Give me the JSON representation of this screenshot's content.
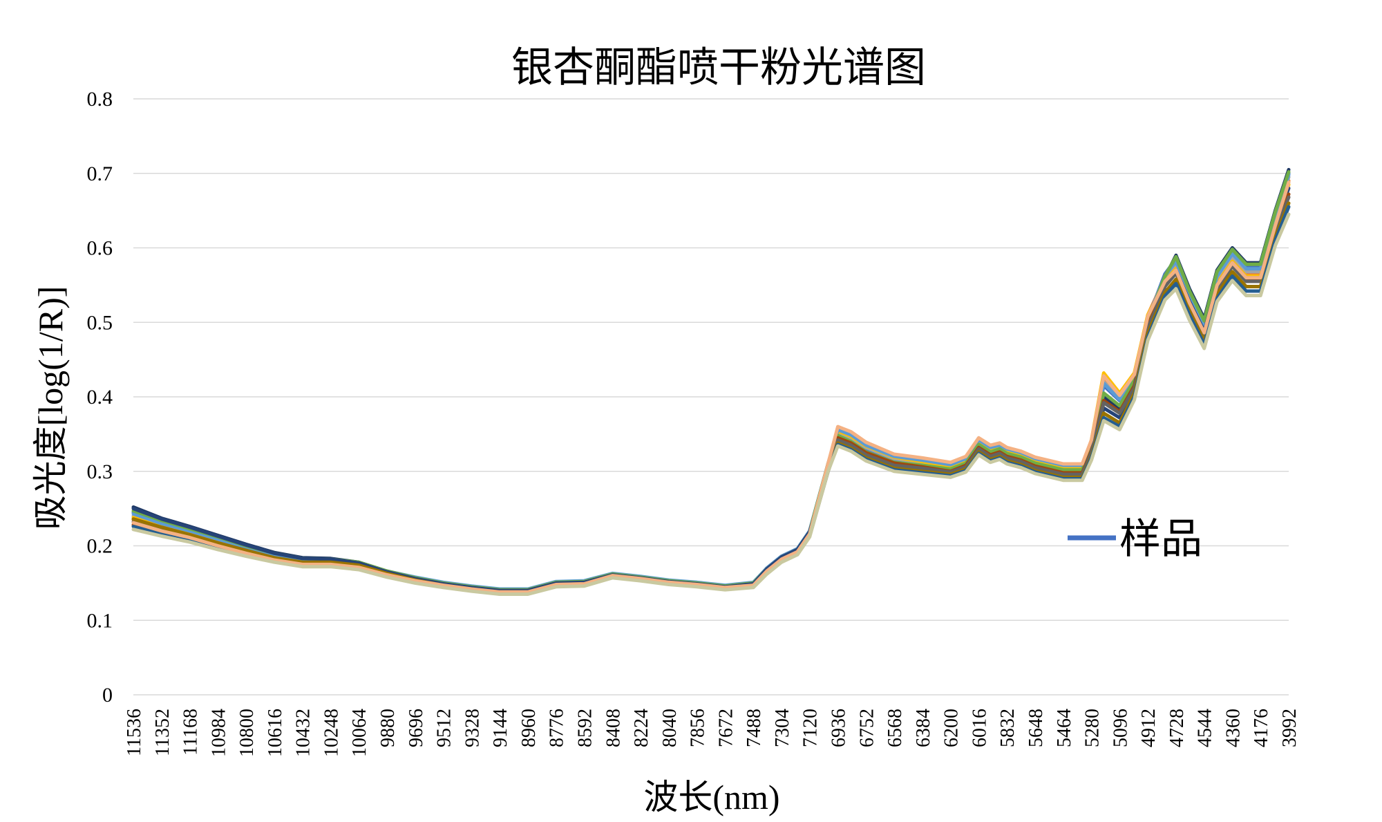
{
  "chart_data": {
    "type": "line",
    "title": "银杏酮酯喷干粉光谱图",
    "xlabel": "波长(nm)",
    "ylabel": "吸光度[log(1/R)]",
    "ylim": [
      0,
      0.8
    ],
    "yticks": [
      "0",
      "0.1",
      "0.2",
      "0.3",
      "0.4",
      "0.5",
      "0.6",
      "0.7",
      "0.8"
    ],
    "xticks": [
      "11536",
      "11352",
      "11168",
      "10984",
      "10800",
      "10616",
      "10432",
      "10248",
      "10064",
      "9880",
      "9696",
      "9512",
      "9328",
      "9144",
      "8960",
      "8776",
      "8592",
      "8408",
      "8224",
      "8040",
      "7856",
      "7672",
      "7488",
      "7304",
      "7120",
      "6936",
      "6752",
      "6568",
      "6384",
      "6200",
      "6016",
      "5832",
      "5648",
      "5464",
      "5280",
      "5096",
      "4912",
      "4728",
      "4544",
      "4360",
      "4176",
      "3992"
    ],
    "grid": true,
    "legend_position": "right",
    "legend_label": "样品",
    "x": [
      11536,
      11352,
      11168,
      10984,
      10800,
      10616,
      10432,
      10248,
      10064,
      9880,
      9696,
      9512,
      9328,
      9144,
      8960,
      8776,
      8592,
      8408,
      8224,
      8040,
      7856,
      7672,
      7488,
      7400,
      7304,
      7200,
      7120,
      7000,
      6936,
      6850,
      6752,
      6568,
      6384,
      6200,
      6100,
      6016,
      5940,
      5880,
      5832,
      5740,
      5648,
      5464,
      5340,
      5280,
      5200,
      5096,
      5000,
      4912,
      4800,
      4728,
      4640,
      4544,
      4460,
      4360,
      4270,
      4176,
      4080,
      3992
    ],
    "series": [
      {
        "color": "#1f3864",
        "values": [
          0.252,
          0.237,
          0.226,
          0.214,
          0.202,
          0.191,
          0.184,
          0.183,
          0.178,
          0.166,
          0.157,
          0.15,
          0.145,
          0.141,
          0.141,
          0.151,
          0.152,
          0.162,
          0.158,
          0.153,
          0.15,
          0.146,
          0.15,
          0.17,
          0.186,
          0.196,
          0.22,
          0.31,
          0.346,
          0.336,
          0.322,
          0.31,
          0.307,
          0.302,
          0.31,
          0.335,
          0.325,
          0.329,
          0.323,
          0.318,
          0.31,
          0.301,
          0.301,
          0.33,
          0.4,
          0.385,
          0.42,
          0.5,
          0.56,
          0.59,
          0.545,
          0.505,
          0.57,
          0.6,
          0.58,
          0.58,
          0.65,
          0.705
        ]
      },
      {
        "color": "#4472c4",
        "values": [
          0.245,
          0.232,
          0.221,
          0.21,
          0.199,
          0.188,
          0.181,
          0.181,
          0.177,
          0.165,
          0.156,
          0.149,
          0.144,
          0.14,
          0.14,
          0.15,
          0.151,
          0.161,
          0.157,
          0.152,
          0.149,
          0.145,
          0.149,
          0.168,
          0.184,
          0.194,
          0.218,
          0.31,
          0.35,
          0.342,
          0.328,
          0.314,
          0.31,
          0.304,
          0.312,
          0.338,
          0.328,
          0.331,
          0.326,
          0.321,
          0.313,
          0.304,
          0.304,
          0.335,
          0.415,
          0.395,
          0.425,
          0.505,
          0.565,
          0.585,
          0.54,
          0.5,
          0.565,
          0.595,
          0.575,
          0.575,
          0.645,
          0.7
        ]
      },
      {
        "color": "#ed7d31",
        "values": [
          0.235,
          0.224,
          0.214,
          0.203,
          0.193,
          0.183,
          0.177,
          0.177,
          0.173,
          0.162,
          0.153,
          0.147,
          0.142,
          0.138,
          0.138,
          0.148,
          0.149,
          0.16,
          0.156,
          0.151,
          0.148,
          0.144,
          0.147,
          0.165,
          0.181,
          0.191,
          0.215,
          0.31,
          0.356,
          0.35,
          0.336,
          0.32,
          0.315,
          0.309,
          0.316,
          0.341,
          0.331,
          0.334,
          0.329,
          0.324,
          0.316,
          0.307,
          0.307,
          0.34,
          0.425,
          0.4,
          0.43,
          0.51,
          0.56,
          0.575,
          0.53,
          0.49,
          0.555,
          0.585,
          0.565,
          0.565,
          0.635,
          0.69
        ]
      },
      {
        "color": "#a5a5a5",
        "values": [
          0.24,
          0.228,
          0.218,
          0.207,
          0.196,
          0.186,
          0.179,
          0.179,
          0.175,
          0.164,
          0.155,
          0.148,
          0.143,
          0.139,
          0.139,
          0.149,
          0.15,
          0.161,
          0.157,
          0.152,
          0.149,
          0.145,
          0.148,
          0.167,
          0.183,
          0.193,
          0.217,
          0.31,
          0.352,
          0.345,
          0.332,
          0.317,
          0.312,
          0.306,
          0.314,
          0.339,
          0.33,
          0.333,
          0.327,
          0.322,
          0.314,
          0.305,
          0.305,
          0.338,
          0.42,
          0.398,
          0.428,
          0.508,
          0.558,
          0.578,
          0.532,
          0.492,
          0.558,
          0.588,
          0.568,
          0.568,
          0.64,
          0.695
        ]
      },
      {
        "color": "#ffc000",
        "values": [
          0.238,
          0.226,
          0.216,
          0.205,
          0.195,
          0.185,
          0.178,
          0.178,
          0.174,
          0.163,
          0.154,
          0.148,
          0.143,
          0.139,
          0.139,
          0.149,
          0.15,
          0.161,
          0.157,
          0.152,
          0.149,
          0.145,
          0.148,
          0.166,
          0.182,
          0.192,
          0.216,
          0.31,
          0.354,
          0.347,
          0.334,
          0.319,
          0.313,
          0.307,
          0.315,
          0.34,
          0.33,
          0.333,
          0.328,
          0.323,
          0.315,
          0.306,
          0.306,
          0.342,
          0.432,
          0.405,
          0.432,
          0.51,
          0.555,
          0.572,
          0.528,
          0.488,
          0.552,
          0.582,
          0.562,
          0.562,
          0.632,
          0.685
        ]
      },
      {
        "color": "#5b9bd5",
        "values": [
          0.243,
          0.23,
          0.22,
          0.209,
          0.198,
          0.188,
          0.181,
          0.18,
          0.176,
          0.166,
          0.158,
          0.151,
          0.146,
          0.142,
          0.142,
          0.152,
          0.153,
          0.163,
          0.159,
          0.154,
          0.151,
          0.147,
          0.151,
          0.17,
          0.186,
          0.196,
          0.22,
          0.31,
          0.356,
          0.349,
          0.335,
          0.32,
          0.315,
          0.309,
          0.317,
          0.342,
          0.332,
          0.335,
          0.33,
          0.325,
          0.317,
          0.308,
          0.308,
          0.338,
          0.418,
          0.396,
          0.426,
          0.506,
          0.562,
          0.582,
          0.536,
          0.496,
          0.562,
          0.592,
          0.572,
          0.572,
          0.642,
          0.698
        ]
      },
      {
        "color": "#70ad47",
        "values": [
          0.247,
          0.234,
          0.223,
          0.212,
          0.2,
          0.19,
          0.183,
          0.182,
          0.178,
          0.166,
          0.157,
          0.15,
          0.145,
          0.141,
          0.141,
          0.151,
          0.152,
          0.162,
          0.158,
          0.153,
          0.15,
          0.146,
          0.15,
          0.169,
          0.185,
          0.195,
          0.219,
          0.31,
          0.348,
          0.34,
          0.326,
          0.312,
          0.308,
          0.303,
          0.311,
          0.336,
          0.326,
          0.33,
          0.324,
          0.319,
          0.311,
          0.302,
          0.302,
          0.332,
          0.405,
          0.388,
          0.422,
          0.502,
          0.562,
          0.588,
          0.542,
          0.502,
          0.568,
          0.598,
          0.578,
          0.578,
          0.648,
          0.702
        ]
      },
      {
        "color": "#264478",
        "values": [
          0.25,
          0.236,
          0.225,
          0.213,
          0.201,
          0.19,
          0.183,
          0.182,
          0.177,
          0.165,
          0.156,
          0.149,
          0.144,
          0.14,
          0.14,
          0.15,
          0.151,
          0.161,
          0.157,
          0.152,
          0.149,
          0.145,
          0.149,
          0.169,
          0.185,
          0.195,
          0.219,
          0.3,
          0.34,
          0.332,
          0.318,
          0.305,
          0.302,
          0.298,
          0.305,
          0.328,
          0.318,
          0.322,
          0.316,
          0.311,
          0.303,
          0.294,
          0.294,
          0.322,
          0.385,
          0.372,
          0.41,
          0.49,
          0.548,
          0.57,
          0.528,
          0.488,
          0.55,
          0.58,
          0.56,
          0.56,
          0.63,
          0.68
        ]
      },
      {
        "color": "#9e480e",
        "values": [
          0.228,
          0.218,
          0.209,
          0.199,
          0.189,
          0.18,
          0.174,
          0.174,
          0.17,
          0.16,
          0.151,
          0.145,
          0.14,
          0.136,
          0.136,
          0.146,
          0.147,
          0.158,
          0.154,
          0.149,
          0.146,
          0.142,
          0.145,
          0.163,
          0.179,
          0.189,
          0.213,
          0.3,
          0.345,
          0.338,
          0.325,
          0.311,
          0.306,
          0.3,
          0.308,
          0.332,
          0.322,
          0.326,
          0.32,
          0.315,
          0.307,
          0.298,
          0.298,
          0.328,
          0.395,
          0.38,
          0.415,
          0.495,
          0.55,
          0.568,
          0.525,
          0.485,
          0.548,
          0.578,
          0.558,
          0.558,
          0.625,
          0.672
        ]
      },
      {
        "color": "#636363",
        "values": [
          0.232,
          0.221,
          0.212,
          0.201,
          0.191,
          0.182,
          0.176,
          0.176,
          0.172,
          0.161,
          0.152,
          0.146,
          0.141,
          0.137,
          0.137,
          0.147,
          0.148,
          0.159,
          0.155,
          0.15,
          0.147,
          0.143,
          0.146,
          0.164,
          0.18,
          0.19,
          0.214,
          0.3,
          0.342,
          0.335,
          0.322,
          0.308,
          0.304,
          0.299,
          0.306,
          0.33,
          0.32,
          0.324,
          0.318,
          0.313,
          0.305,
          0.296,
          0.296,
          0.326,
          0.392,
          0.378,
          0.412,
          0.492,
          0.548,
          0.566,
          0.522,
          0.482,
          0.545,
          0.575,
          0.555,
          0.555,
          0.622,
          0.668
        ]
      },
      {
        "color": "#997300",
        "values": [
          0.236,
          0.225,
          0.215,
          0.204,
          0.194,
          0.184,
          0.178,
          0.178,
          0.174,
          0.163,
          0.154,
          0.147,
          0.142,
          0.138,
          0.138,
          0.148,
          0.149,
          0.16,
          0.156,
          0.151,
          0.148,
          0.144,
          0.147,
          0.165,
          0.181,
          0.191,
          0.215,
          0.3,
          0.338,
          0.331,
          0.318,
          0.304,
          0.3,
          0.296,
          0.303,
          0.326,
          0.316,
          0.32,
          0.314,
          0.309,
          0.301,
          0.292,
          0.292,
          0.32,
          0.378,
          0.365,
          0.405,
          0.485,
          0.54,
          0.558,
          0.515,
          0.475,
          0.538,
          0.568,
          0.548,
          0.548,
          0.615,
          0.66
        ]
      },
      {
        "color": "#255e91",
        "values": [
          0.226,
          0.216,
          0.207,
          0.197,
          0.188,
          0.179,
          0.173,
          0.173,
          0.169,
          0.159,
          0.151,
          0.145,
          0.14,
          0.136,
          0.136,
          0.146,
          0.147,
          0.158,
          0.154,
          0.149,
          0.146,
          0.142,
          0.145,
          0.163,
          0.179,
          0.189,
          0.213,
          0.3,
          0.336,
          0.329,
          0.316,
          0.302,
          0.298,
          0.294,
          0.301,
          0.324,
          0.314,
          0.318,
          0.312,
          0.307,
          0.299,
          0.29,
          0.29,
          0.318,
          0.372,
          0.36,
          0.4,
          0.48,
          0.535,
          0.552,
          0.51,
          0.47,
          0.532,
          0.562,
          0.542,
          0.542,
          0.61,
          0.655
        ]
      },
      {
        "color": "#f4b183",
        "values": [
          0.231,
          0.22,
          0.211,
          0.2,
          0.19,
          0.181,
          0.175,
          0.175,
          0.171,
          0.161,
          0.153,
          0.147,
          0.142,
          0.138,
          0.138,
          0.148,
          0.149,
          0.16,
          0.156,
          0.151,
          0.148,
          0.144,
          0.147,
          0.166,
          0.182,
          0.192,
          0.216,
          0.31,
          0.36,
          0.353,
          0.339,
          0.323,
          0.318,
          0.312,
          0.32,
          0.345,
          0.335,
          0.338,
          0.332,
          0.327,
          0.319,
          0.31,
          0.31,
          0.342,
          0.428,
          0.402,
          0.43,
          0.508,
          0.555,
          0.57,
          0.526,
          0.486,
          0.55,
          0.58,
          0.56,
          0.56,
          0.63,
          0.688
        ]
      },
      {
        "color": "#c9c9a0",
        "values": [
          0.222,
          0.213,
          0.205,
          0.195,
          0.186,
          0.178,
          0.172,
          0.172,
          0.168,
          0.158,
          0.15,
          0.144,
          0.139,
          0.135,
          0.135,
          0.145,
          0.146,
          0.157,
          0.153,
          0.148,
          0.145,
          0.141,
          0.144,
          0.162,
          0.178,
          0.188,
          0.212,
          0.3,
          0.334,
          0.327,
          0.314,
          0.3,
          0.296,
          0.292,
          0.299,
          0.322,
          0.312,
          0.316,
          0.31,
          0.305,
          0.297,
          0.288,
          0.288,
          0.315,
          0.368,
          0.356,
          0.396,
          0.476,
          0.53,
          0.545,
          0.503,
          0.465,
          0.528,
          0.556,
          0.536,
          0.536,
          0.603,
          0.645
        ]
      }
    ]
  }
}
